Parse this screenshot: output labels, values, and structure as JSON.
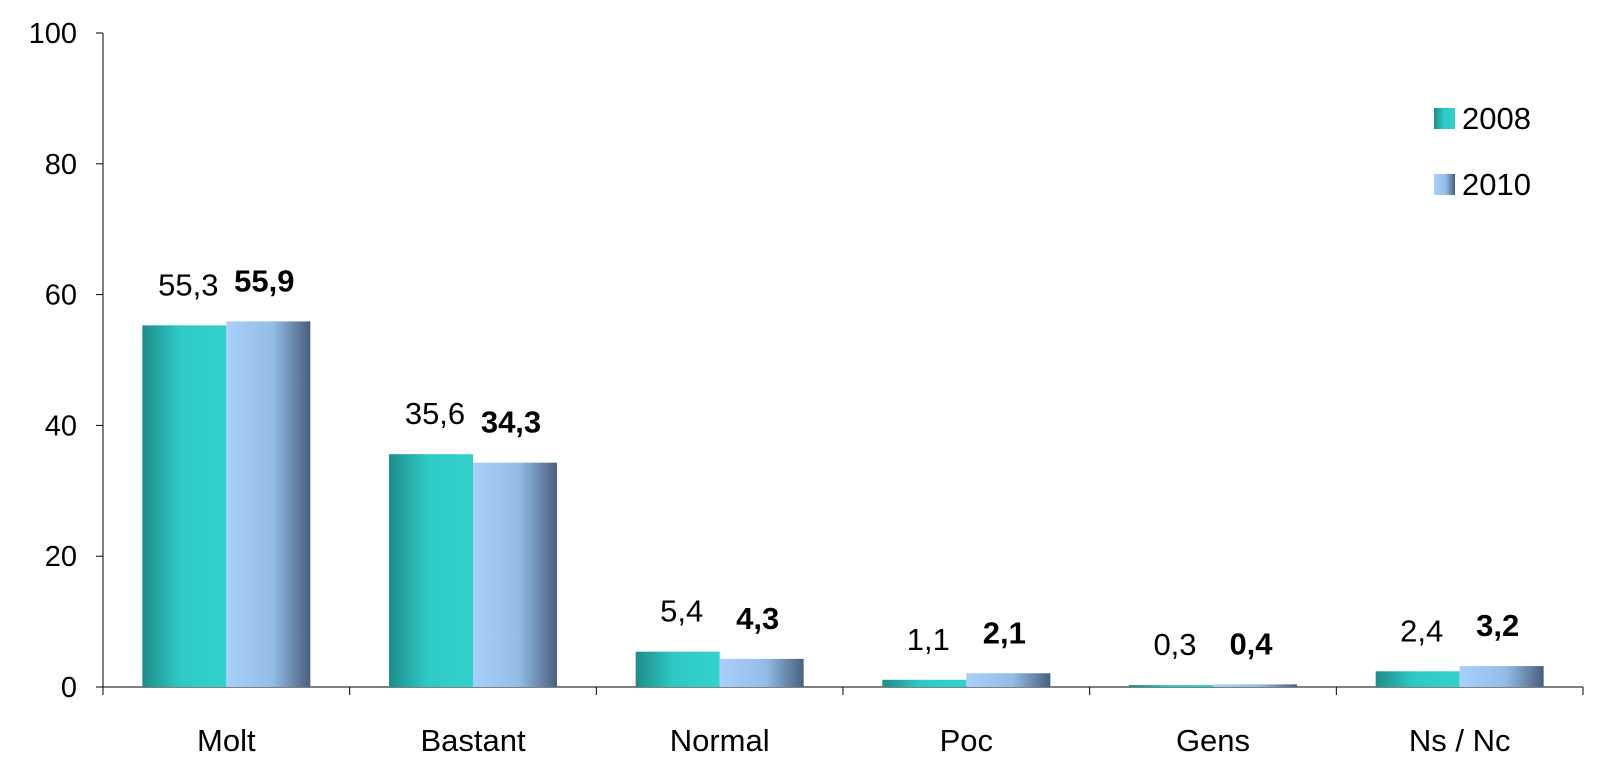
{
  "chart_data": {
    "type": "bar",
    "title": "",
    "xlabel": "",
    "ylabel": "",
    "categories": [
      "Molt",
      "Bastant",
      "Normal",
      "Poc",
      "Gens",
      "Ns / Nc"
    ],
    "series": [
      {
        "name": "2008",
        "values": [
          55.3,
          35.6,
          5.4,
          1.1,
          0.3,
          2.4
        ],
        "labels": [
          "55,3",
          "35,6",
          "5,4",
          "1,1",
          "0,3",
          "2,4"
        ],
        "color": "#2EC4C0",
        "label_weight": "normal"
      },
      {
        "name": "2010",
        "values": [
          55.9,
          34.3,
          4.3,
          2.1,
          0.4,
          3.2
        ],
        "labels": [
          "55,9",
          "34,3",
          "4,3",
          "2,1",
          "0,4",
          "3,2"
        ],
        "color": "#9CC8F5",
        "label_weight": "bold"
      }
    ],
    "ylim": [
      0,
      100
    ],
    "yticks": [
      0,
      20,
      40,
      60,
      80,
      100
    ],
    "ytick_labels": [
      "0",
      "20",
      "40",
      "60",
      "80",
      "100"
    ],
    "grid": false,
    "legend": "top-right"
  }
}
